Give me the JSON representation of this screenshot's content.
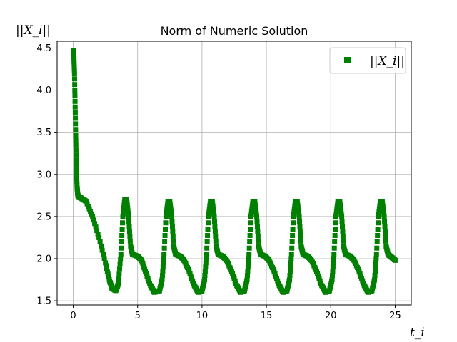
{
  "chart_data": {
    "type": "scatter",
    "title": "Norm of Numeric Solution",
    "xlabel": "t_i",
    "ylabel": "||X_i||",
    "xlim": [
      -1.25,
      26.25
    ],
    "ylim": [
      1.45,
      4.58
    ],
    "xticks": [
      0,
      5,
      10,
      15,
      20,
      25
    ],
    "yticks": [
      1.5,
      2.0,
      2.5,
      3.0,
      3.5,
      4.0,
      4.5
    ],
    "xtick_labels": [
      "0",
      "5",
      "10",
      "15",
      "20",
      "25"
    ],
    "ytick_labels": [
      "1.5",
      "2.0",
      "2.5",
      "3.0",
      "3.5",
      "4.0",
      "4.5"
    ],
    "grid": true,
    "legend_position": "top-right",
    "marker": "square",
    "series": [
      {
        "name": "||X_i||",
        "color": "#008000",
        "points": [
          [
            0.0,
            4.47
          ],
          [
            0.05,
            4.4
          ],
          [
            0.1,
            4.2
          ],
          [
            0.15,
            3.8
          ],
          [
            0.2,
            3.4
          ],
          [
            0.25,
            3.05
          ],
          [
            0.3,
            2.85
          ],
          [
            0.35,
            2.76
          ],
          [
            0.4,
            2.73
          ],
          [
            0.6,
            2.72
          ],
          [
            1.0,
            2.68
          ],
          [
            1.5,
            2.5
          ],
          [
            2.0,
            2.25
          ],
          [
            2.5,
            1.95
          ],
          [
            2.8,
            1.75
          ],
          [
            3.0,
            1.65
          ],
          [
            3.3,
            1.62
          ],
          [
            3.5,
            1.7
          ],
          [
            3.7,
            2.05
          ],
          [
            3.85,
            2.5
          ],
          [
            4.0,
            2.7
          ],
          [
            4.15,
            2.7
          ],
          [
            4.3,
            2.5
          ],
          [
            4.45,
            2.15
          ],
          [
            4.6,
            2.05
          ],
          [
            5.0,
            2.03
          ],
          [
            5.3,
            1.98
          ],
          [
            5.6,
            1.85
          ],
          [
            6.0,
            1.68
          ],
          [
            6.3,
            1.6
          ],
          [
            6.7,
            1.62
          ],
          [
            6.9,
            1.75
          ],
          [
            7.05,
            2.05
          ],
          [
            7.2,
            2.5
          ],
          [
            7.35,
            2.68
          ],
          [
            7.5,
            2.68
          ],
          [
            7.65,
            2.5
          ],
          [
            7.8,
            2.15
          ],
          [
            7.95,
            2.05
          ],
          [
            8.3,
            2.03
          ],
          [
            8.6,
            1.98
          ],
          [
            9.0,
            1.85
          ],
          [
            9.4,
            1.68
          ],
          [
            9.7,
            1.6
          ],
          [
            10.0,
            1.62
          ],
          [
            10.2,
            1.75
          ],
          [
            10.35,
            2.05
          ],
          [
            10.5,
            2.5
          ],
          [
            10.65,
            2.68
          ],
          [
            10.8,
            2.68
          ],
          [
            10.95,
            2.5
          ],
          [
            11.1,
            2.15
          ],
          [
            11.25,
            2.05
          ],
          [
            11.6,
            2.03
          ],
          [
            11.9,
            1.98
          ],
          [
            12.3,
            1.85
          ],
          [
            12.7,
            1.68
          ],
          [
            13.0,
            1.6
          ],
          [
            13.3,
            1.62
          ],
          [
            13.5,
            1.75
          ],
          [
            13.65,
            2.05
          ],
          [
            13.8,
            2.5
          ],
          [
            13.95,
            2.68
          ],
          [
            14.1,
            2.68
          ],
          [
            14.25,
            2.5
          ],
          [
            14.4,
            2.15
          ],
          [
            14.55,
            2.05
          ],
          [
            14.9,
            2.03
          ],
          [
            15.2,
            1.98
          ],
          [
            15.6,
            1.85
          ],
          [
            16.0,
            1.68
          ],
          [
            16.3,
            1.6
          ],
          [
            16.6,
            1.62
          ],
          [
            16.8,
            1.75
          ],
          [
            16.95,
            2.05
          ],
          [
            17.1,
            2.5
          ],
          [
            17.25,
            2.68
          ],
          [
            17.4,
            2.68
          ],
          [
            17.55,
            2.5
          ],
          [
            17.7,
            2.15
          ],
          [
            17.85,
            2.05
          ],
          [
            18.2,
            2.03
          ],
          [
            18.5,
            1.98
          ],
          [
            18.9,
            1.85
          ],
          [
            19.3,
            1.68
          ],
          [
            19.6,
            1.6
          ],
          [
            19.9,
            1.62
          ],
          [
            20.1,
            1.75
          ],
          [
            20.25,
            2.05
          ],
          [
            20.4,
            2.5
          ],
          [
            20.55,
            2.68
          ],
          [
            20.7,
            2.68
          ],
          [
            20.85,
            2.5
          ],
          [
            21.0,
            2.15
          ],
          [
            21.15,
            2.05
          ],
          [
            21.5,
            2.03
          ],
          [
            21.8,
            1.98
          ],
          [
            22.2,
            1.85
          ],
          [
            22.6,
            1.68
          ],
          [
            22.9,
            1.6
          ],
          [
            23.2,
            1.62
          ],
          [
            23.4,
            1.75
          ],
          [
            23.55,
            2.05
          ],
          [
            23.7,
            2.5
          ],
          [
            23.85,
            2.68
          ],
          [
            24.0,
            2.68
          ],
          [
            24.15,
            2.5
          ],
          [
            24.3,
            2.15
          ],
          [
            24.45,
            2.05
          ],
          [
            24.7,
            2.02
          ],
          [
            25.0,
            1.98
          ]
        ]
      }
    ]
  }
}
